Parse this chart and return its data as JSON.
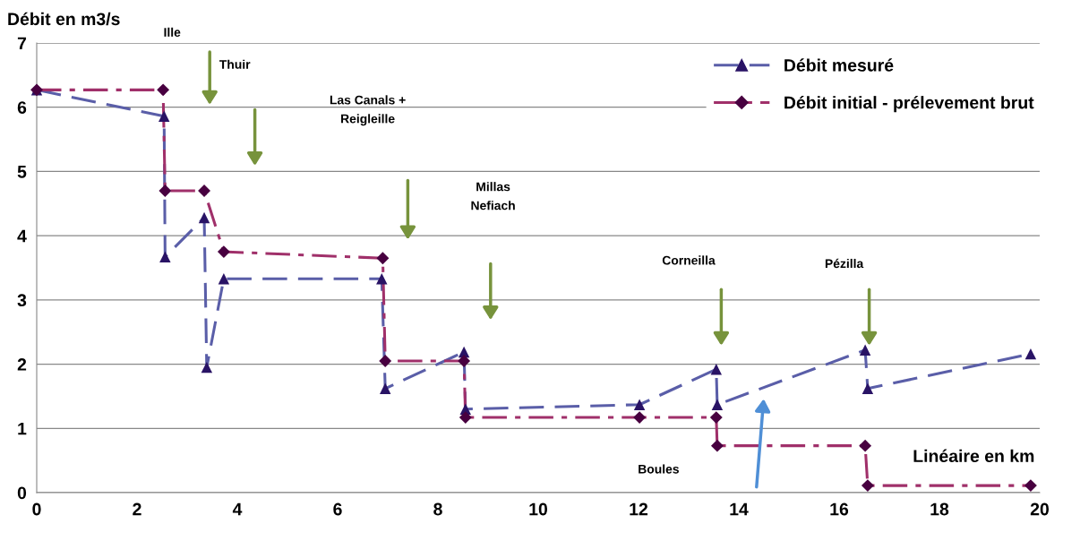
{
  "chart_data": {
    "type": "line",
    "ylabel": "Débit en m3/s",
    "xlabel": "Linéaire en km",
    "xlim": [
      0,
      20
    ],
    "xticks": [
      0,
      2,
      4,
      6,
      8,
      10,
      12,
      14,
      16,
      18,
      20
    ],
    "ylim": [
      0,
      7
    ],
    "yticks": [
      0,
      1,
      2,
      3,
      4,
      5,
      6,
      7
    ],
    "grid": "y",
    "legend": "top right",
    "series": [
      {
        "name": "Débit mesuré",
        "color": "#5a5ea8",
        "marker": "triangle",
        "line_style": "dashed",
        "x": [
          0,
          2.54,
          2.56,
          3.34,
          3.39,
          3.73,
          6.88,
          6.95,
          8.52,
          8.55,
          12.02,
          13.55,
          13.57,
          16.52,
          16.57,
          19.82
        ],
        "values": [
          6.27,
          5.86,
          3.67,
          4.28,
          1.95,
          3.33,
          3.33,
          1.62,
          2.19,
          1.3,
          1.37,
          1.92,
          1.37,
          2.22,
          1.62,
          2.16
        ]
      },
      {
        "name": "Débit initial - prélevement brut",
        "color": "#a0306a",
        "marker": "diamond",
        "line_style": "dashdot",
        "x": [
          0,
          2.52,
          2.56,
          3.34,
          3.73,
          6.9,
          6.95,
          8.52,
          8.55,
          12.02,
          13.55,
          13.57,
          16.52,
          16.57,
          19.82
        ],
        "values": [
          6.27,
          6.27,
          4.7,
          4.7,
          3.75,
          3.65,
          2.05,
          2.05,
          1.17,
          1.17,
          1.17,
          0.73,
          0.73,
          0.11,
          0.11
        ]
      }
    ],
    "annotations": [
      "Ille",
      "Thuir",
      "Las Canals +\nReigleille",
      "Millas\nNefiach",
      "Corneilla",
      "Pézilla",
      "Boules"
    ]
  }
}
